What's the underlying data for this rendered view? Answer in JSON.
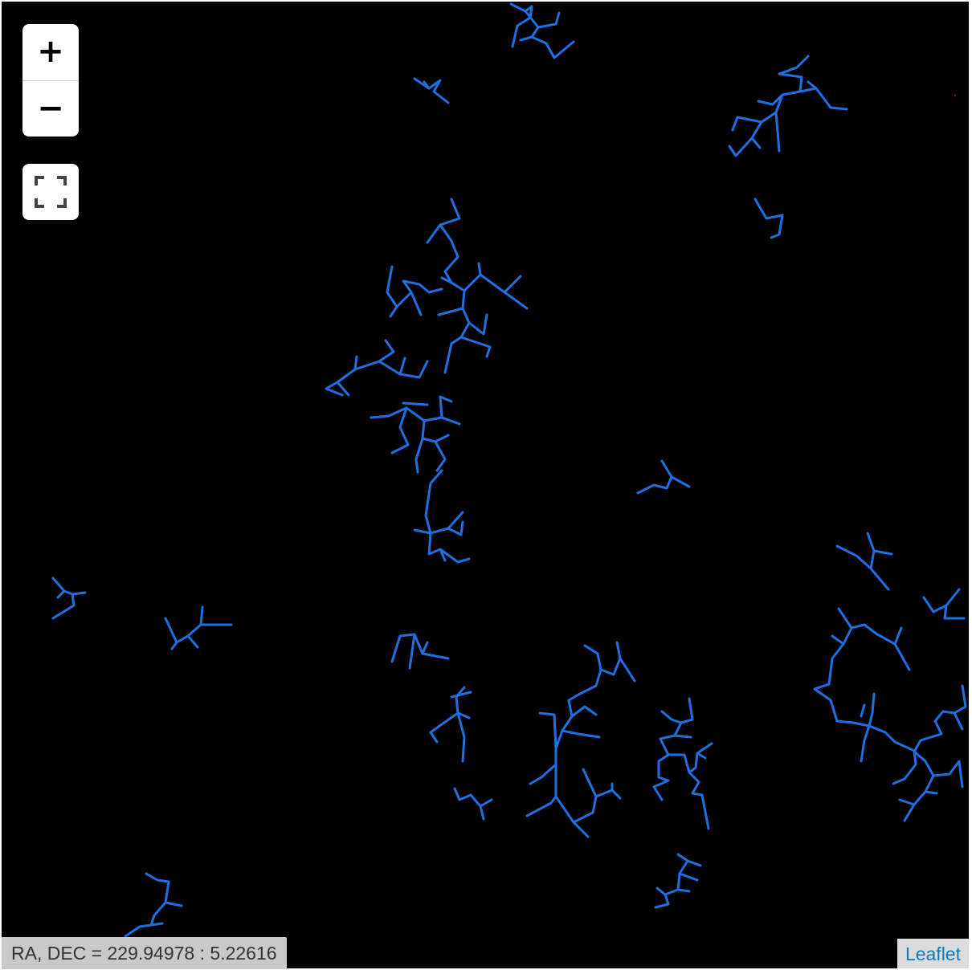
{
  "map": {
    "background_color": "#000000",
    "filament_color": "#1f6fe0",
    "controls": {
      "zoom_in_label": "+",
      "zoom_out_label": "−",
      "fullscreen_icon": "fullscreen-icon"
    },
    "coordinate_readout": "RA, DEC = 229.94978 : 5.22616",
    "attribution": "Leaflet"
  }
}
